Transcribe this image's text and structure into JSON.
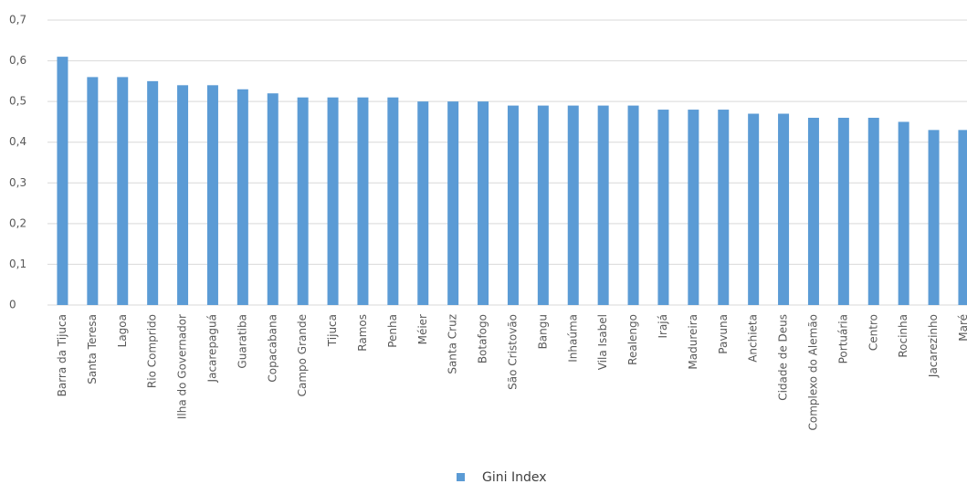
{
  "chart_data": {
    "type": "bar",
    "categories": [
      "Barra da Tijuca",
      "Santa Teresa",
      "Lagoa",
      "Rio Comprido",
      "Ilha do Governador",
      "Jacarepaguá",
      "Guaratiba",
      "Copacabana",
      "Campo Grande",
      "Tijuca",
      "Ramos",
      "Penha",
      "Méier",
      "Santa Cruz",
      "Botafogo",
      "São Cristovão",
      "Bangu",
      "Inhaúma",
      "Vila Isabel",
      "Realengo",
      "Irajá",
      "Madureira",
      "Pavuna",
      "Anchieta",
      "Cidade de Deus",
      "Complexo do Alemão",
      "Portuária",
      "Centro",
      "Rocinha",
      "Jacarezinho",
      "Maré"
    ],
    "series": [
      {
        "name": "Gini Index",
        "color": "#5b9bd5",
        "values": [
          0.61,
          0.56,
          0.56,
          0.55,
          0.54,
          0.54,
          0.53,
          0.52,
          0.51,
          0.51,
          0.51,
          0.51,
          0.5,
          0.5,
          0.5,
          0.49,
          0.49,
          0.49,
          0.49,
          0.49,
          0.48,
          0.48,
          0.48,
          0.47,
          0.47,
          0.46,
          0.46,
          0.46,
          0.45,
          0.43,
          0.43
        ]
      }
    ],
    "ylim": [
      0,
      0.7
    ],
    "yticks": [
      0,
      {
        "value": 0.1,
        "label": "0,1"
      },
      {
        "value": 0.2,
        "label": "0,2"
      },
      {
        "value": 0.3,
        "label": "0,3"
      },
      {
        "value": 0.4,
        "label": "0,4"
      },
      {
        "value": 0.5,
        "label": "0,5"
      },
      {
        "value": 0.6,
        "label": "0,6"
      },
      {
        "value": 0.7,
        "label": "0,7"
      }
    ],
    "grid": true,
    "legend": "bottom"
  }
}
